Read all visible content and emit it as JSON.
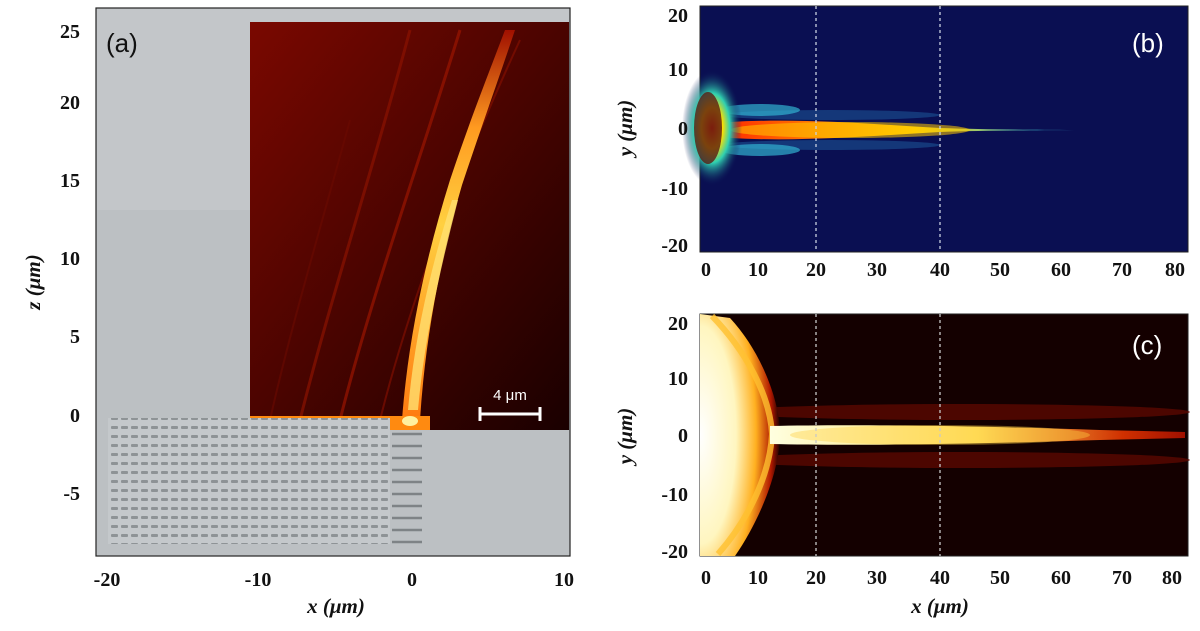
{
  "figure": {
    "panel_a": {
      "label": "(a)",
      "x_axis_label": "x (μm)",
      "z_axis_label": "z (μm)",
      "x_ticks": [
        "-20",
        "-10",
        "0",
        "10"
      ],
      "z_ticks": [
        "25",
        "20",
        "15",
        "10",
        "5",
        "0",
        "-5"
      ],
      "scale_bar_label": "4 μm"
    },
    "panel_b": {
      "label": "(b)",
      "y_axis_label": "y (μm)",
      "x_ticks": [
        "0",
        "10",
        "20",
        "30",
        "40",
        "50",
        "60",
        "70",
        "80"
      ],
      "y_ticks": [
        "20",
        "10",
        "0",
        "-10",
        "-20"
      ]
    },
    "panel_c": {
      "label": "(c)",
      "x_axis_label": "x (μm)",
      "y_axis_label": "y (μm)",
      "x_ticks": [
        "0",
        "10",
        "20",
        "30",
        "40",
        "50",
        "60",
        "70",
        "80"
      ],
      "y_ticks": [
        "20",
        "10",
        "0",
        "-10",
        "-20"
      ]
    }
  },
  "colors": {
    "hot_dark": "#1a0000",
    "hot_red": "#9a0c00",
    "hot_yellow": "#ffe860",
    "jet_background": "#0a0f52",
    "grey_substrate": "#bfc3c6"
  }
}
